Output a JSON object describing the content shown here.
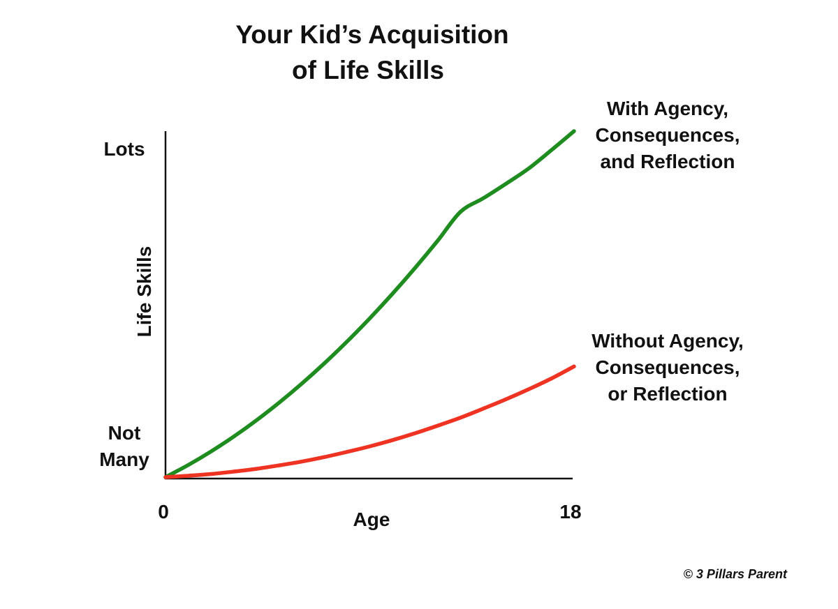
{
  "chart_data": {
    "type": "line",
    "title": [
      "Your Kid’s Acquisition",
      "of Life Skills"
    ],
    "xlabel": "Age",
    "ylabel": "Life Skills",
    "x_ticks": [
      "0",
      "18"
    ],
    "y_ticks": {
      "top": "Lots",
      "bottom": [
        "Not",
        "Many"
      ]
    },
    "xlim": [
      0,
      18
    ],
    "ylim": [
      0,
      1
    ],
    "grid": false,
    "x": [
      0,
      1,
      2,
      3,
      4,
      5,
      6,
      7,
      8,
      9,
      10,
      11,
      12,
      13,
      14,
      15,
      16,
      17,
      18
    ],
    "series": [
      {
        "name": [
          "With Agency,",
          "Consequences,",
          "and Reflection"
        ],
        "color": "#1e8c1e",
        "values": [
          0.0,
          0.035,
          0.074,
          0.117,
          0.164,
          0.215,
          0.27,
          0.329,
          0.392,
          0.459,
          0.53,
          0.605,
          0.684,
          0.767,
          0.806,
          0.848,
          0.892,
          0.945,
          1.0
        ]
      },
      {
        "name": [
          "Without Agency,",
          "Consequences,",
          "or Reflection"
        ],
        "color": "#ee3322",
        "values": [
          0.0,
          0.004,
          0.009,
          0.016,
          0.024,
          0.034,
          0.045,
          0.058,
          0.073,
          0.089,
          0.107,
          0.127,
          0.149,
          0.172,
          0.198,
          0.225,
          0.254,
          0.285,
          0.32
        ]
      }
    ],
    "annotations": [
      "© 3 Pillars Parent"
    ]
  }
}
